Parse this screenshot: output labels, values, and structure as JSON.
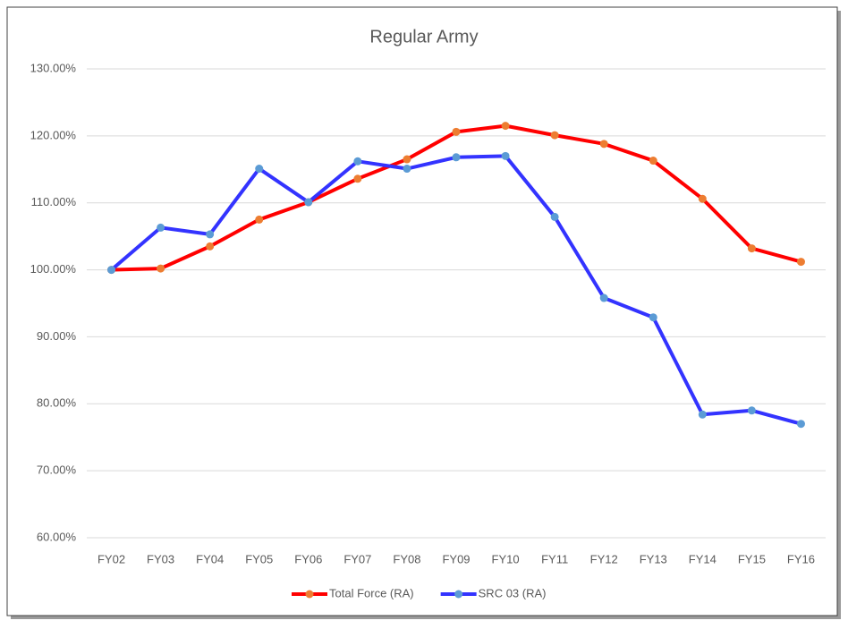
{
  "chart_data": {
    "type": "line",
    "title": "Regular Army",
    "categories": [
      "FY02",
      "FY03",
      "FY04",
      "FY05",
      "FY06",
      "FY07",
      "FY08",
      "FY09",
      "FY10",
      "FY11",
      "FY12",
      "FY13",
      "FY14",
      "FY15",
      "FY16"
    ],
    "series": [
      {
        "name": "Total Force (RA)",
        "color": "#ff0000",
        "marker_color": "#ed7d31",
        "values": [
          100.0,
          100.2,
          103.5,
          107.5,
          110.1,
          113.6,
          116.5,
          120.6,
          121.5,
          120.1,
          118.8,
          116.3,
          110.6,
          103.2,
          101.2
        ]
      },
      {
        "name": "SRC 03 (RA)",
        "color": "#3333ff",
        "marker_color": "#5b9bd5",
        "values": [
          100.0,
          106.3,
          105.3,
          115.1,
          110.1,
          116.2,
          115.1,
          116.8,
          117.0,
          107.9,
          95.8,
          92.9,
          78.4,
          79.0,
          77.0
        ]
      }
    ],
    "ylim": [
      60,
      130
    ],
    "yticks": [
      {
        "value": 60,
        "label": "60.00%"
      },
      {
        "value": 70,
        "label": "70.00%"
      },
      {
        "value": 80,
        "label": "80.00%"
      },
      {
        "value": 90,
        "label": "90.00%"
      },
      {
        "value": 100,
        "label": "100.00%"
      },
      {
        "value": 110,
        "label": "110.00%"
      },
      {
        "value": 120,
        "label": "120.00%"
      },
      {
        "value": 130,
        "label": "130.00%"
      }
    ],
    "grid": true,
    "legend": "bottom"
  }
}
